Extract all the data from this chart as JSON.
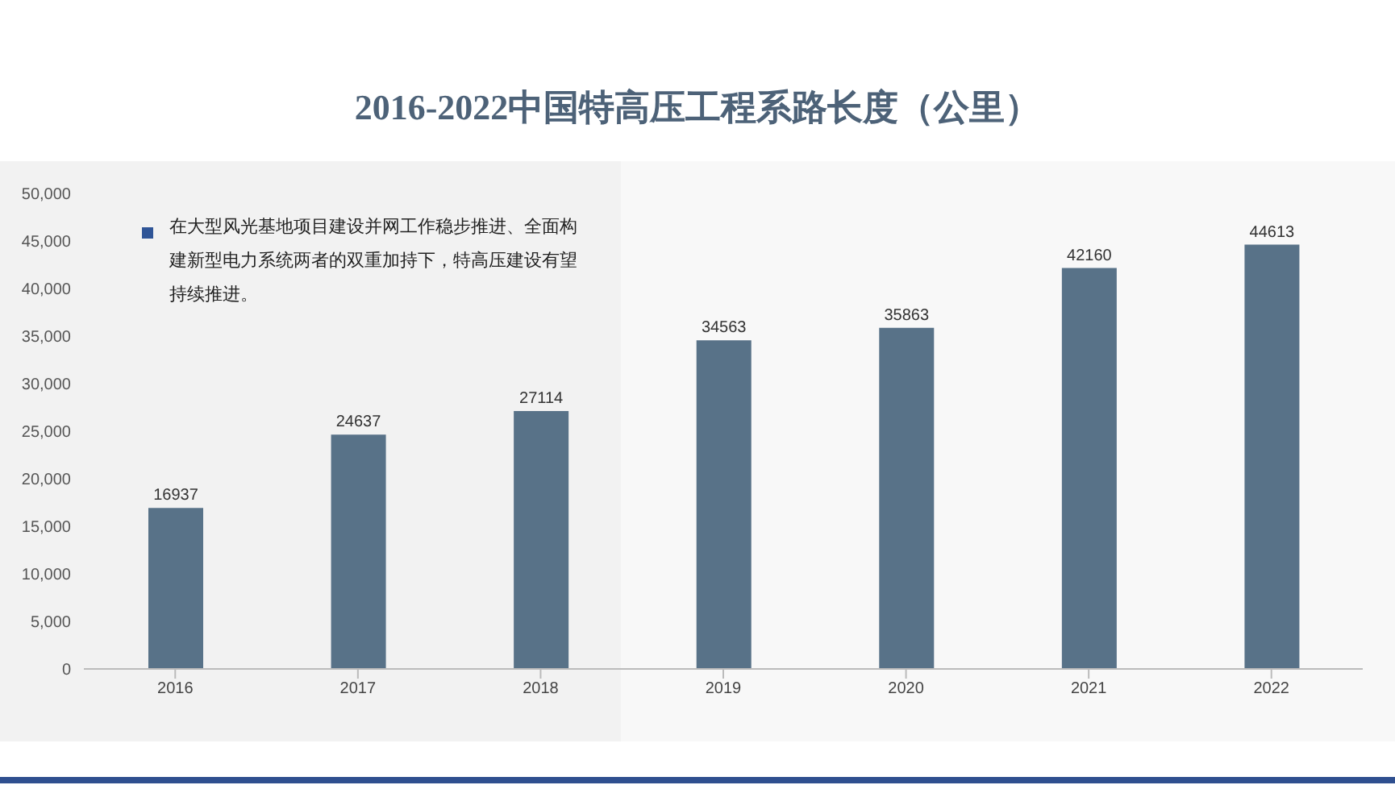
{
  "chart_data": {
    "type": "bar",
    "title": "2016-2022中国特高压工程系路长度（公里）",
    "categories": [
      "2016",
      "2017",
      "2018",
      "2019",
      "2020",
      "2021",
      "2022"
    ],
    "values": [
      16937,
      24637,
      27114,
      34563,
      35863,
      42160,
      44613
    ],
    "color": "#587288",
    "ylim": [
      0,
      50000
    ],
    "yticks": [
      0,
      {
        "value": 5000,
        "label": "5,000"
      },
      {
        "value": 10000,
        "label": "10,000"
      },
      {
        "value": 15000,
        "label": "15,000"
      },
      {
        "value": 20000,
        "label": "20,000"
      },
      {
        "value": 25000,
        "label": "25,000"
      },
      {
        "value": 30000,
        "label": "30,000"
      },
      {
        "value": 35000,
        "label": "35,000"
      },
      {
        "value": 40000,
        "label": "40,000"
      },
      {
        "value": 45000,
        "label": "45,000"
      },
      {
        "value": 50000,
        "label": "50,000"
      }
    ],
    "grid": false,
    "data_labels": true,
    "annotations": [
      "在大型风光基地项目建设并网工作稳步推进、全面构建新型电力系统两者的双重加持下，特高压建设有望持续推进。"
    ]
  }
}
